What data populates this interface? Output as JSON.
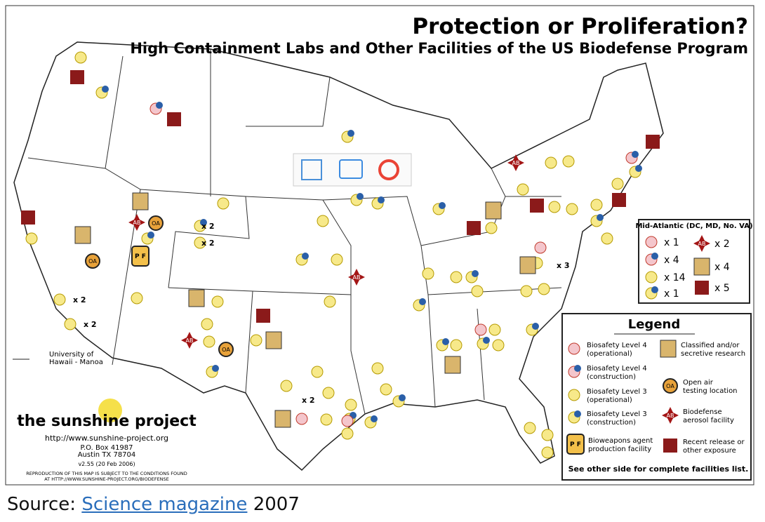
{
  "map": {
    "title": "Protection or Proliferation?",
    "subtitle": "High Containment Labs and Other Facilities of the US Biodefense Program",
    "mid_atlantic": {
      "title": "Mid-Atlantic (DC, MD, No. VA)",
      "counts": [
        "x 1",
        "x 4",
        "x 14",
        "x 1",
        "x 2",
        "x 4",
        "x 5"
      ]
    },
    "legend": {
      "title": "Legend",
      "items": [
        {
          "lines": [
            "Biosafety Level 4",
            "(operational)"
          ]
        },
        {
          "lines": [
            "Biosafety Level 4",
            "(construction)"
          ]
        },
        {
          "lines": [
            "Biosafety Level 3",
            "(operational)"
          ]
        },
        {
          "lines": [
            "Biosafety Level 3",
            "(construction)"
          ]
        },
        {
          "lines": [
            "Bioweapons agent",
            "production facility"
          ]
        },
        {
          "lines": [
            "Classified and/or",
            "secretive research"
          ]
        },
        {
          "lines": [
            "Open air",
            "testing location"
          ]
        },
        {
          "lines": [
            "Biodefense",
            "aerosol facility"
          ]
        },
        {
          "lines": [
            "Recent release or",
            "other exposure"
          ]
        }
      ],
      "footer": "See other side for complete facilities list."
    },
    "icon_labels": {
      "aerosol": "AB",
      "open_air": "OA",
      "production": "P F"
    },
    "callouts": [
      "x 2",
      "x 2",
      "x 2",
      "x 2",
      "x 2",
      "x 3"
    ],
    "hawaii": [
      "University of",
      "Hawaii - Manoa"
    ],
    "sunshine": {
      "name": "the sunshine project",
      "url": "http://www.sunshine-project.org",
      "address": [
        "P.O. Box 41987",
        "Austin  TX  78704"
      ],
      "version": "v2.55 (20 Feb 2006)",
      "notice": [
        "REPRODUCTION OF THIS MAP IS SUBJECT TO THE CONDITIONS FOUND",
        "AT HTTP://WWW.SUNSHINE-PROJECT.ORG/BIODEFENSE"
      ]
    }
  },
  "caption": {
    "prefix": "Source:",
    "link": "Science magazine",
    "suffix": "2007"
  }
}
